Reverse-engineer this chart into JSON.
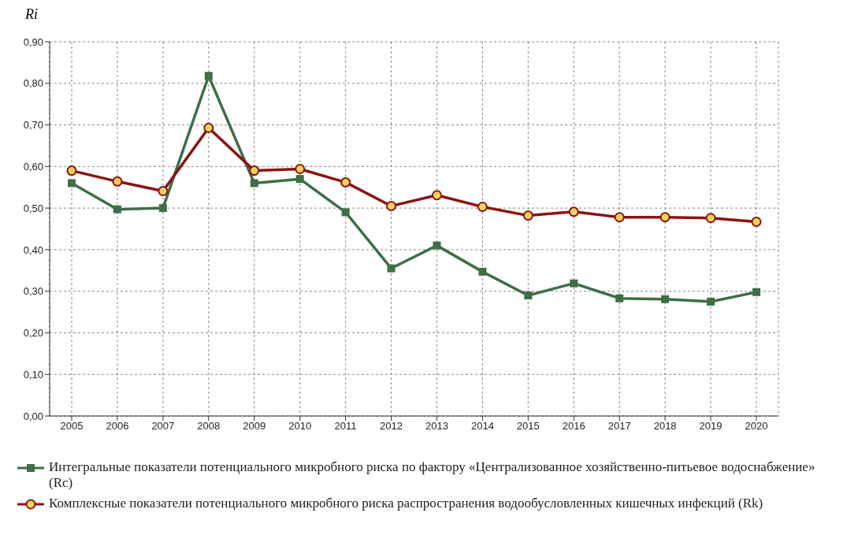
{
  "chart_data": {
    "type": "line",
    "ylabel": "Ri",
    "categories": [
      "2005",
      "2006",
      "2007",
      "2008",
      "2009",
      "2010",
      "2011",
      "2012",
      "2013",
      "2014",
      "2015",
      "2016",
      "2017",
      "2018",
      "2019",
      "2020"
    ],
    "series": [
      {
        "name": "Интегральные показатели потенциального микробного риска по фактору «Централизованное хозяйственно-питьевое водоснабжение» (Rc)",
        "color": "#3f6e47",
        "marker": "square",
        "values": [
          0.56,
          0.497,
          0.5,
          0.818,
          0.56,
          0.57,
          0.49,
          0.355,
          0.41,
          0.347,
          0.29,
          0.319,
          0.283,
          0.281,
          0.275,
          0.298
        ]
      },
      {
        "name": "Комплексные показатели потенциального микробного риска распространения водообусловленных кишечных инфекций (Rk)",
        "color": "#8b1414",
        "marker": "circle",
        "values": [
          0.59,
          0.564,
          0.541,
          0.693,
          0.59,
          0.594,
          0.562,
          0.505,
          0.531,
          0.503,
          0.482,
          0.491,
          0.478,
          0.478,
          0.476,
          0.467
        ]
      }
    ],
    "ylim": [
      0,
      0.9
    ],
    "yticks": [
      {
        "value": 0,
        "label": "0,00"
      },
      {
        "value": 0.1,
        "label": "0,10"
      },
      {
        "value": 0.2,
        "label": "0,20"
      },
      {
        "value": 0.3,
        "label": "0,30"
      },
      {
        "value": 0.4,
        "label": "0,40"
      },
      {
        "value": 0.5,
        "label": "0,50"
      },
      {
        "value": 0.6,
        "label": "0,60"
      },
      {
        "value": 0.7,
        "label": "0,70"
      },
      {
        "value": 0.8,
        "label": "0,80"
      },
      {
        "value": 0.9,
        "label": "0,90"
      }
    ],
    "grid": true,
    "legend": "bottom",
    "line_style": "solid"
  }
}
